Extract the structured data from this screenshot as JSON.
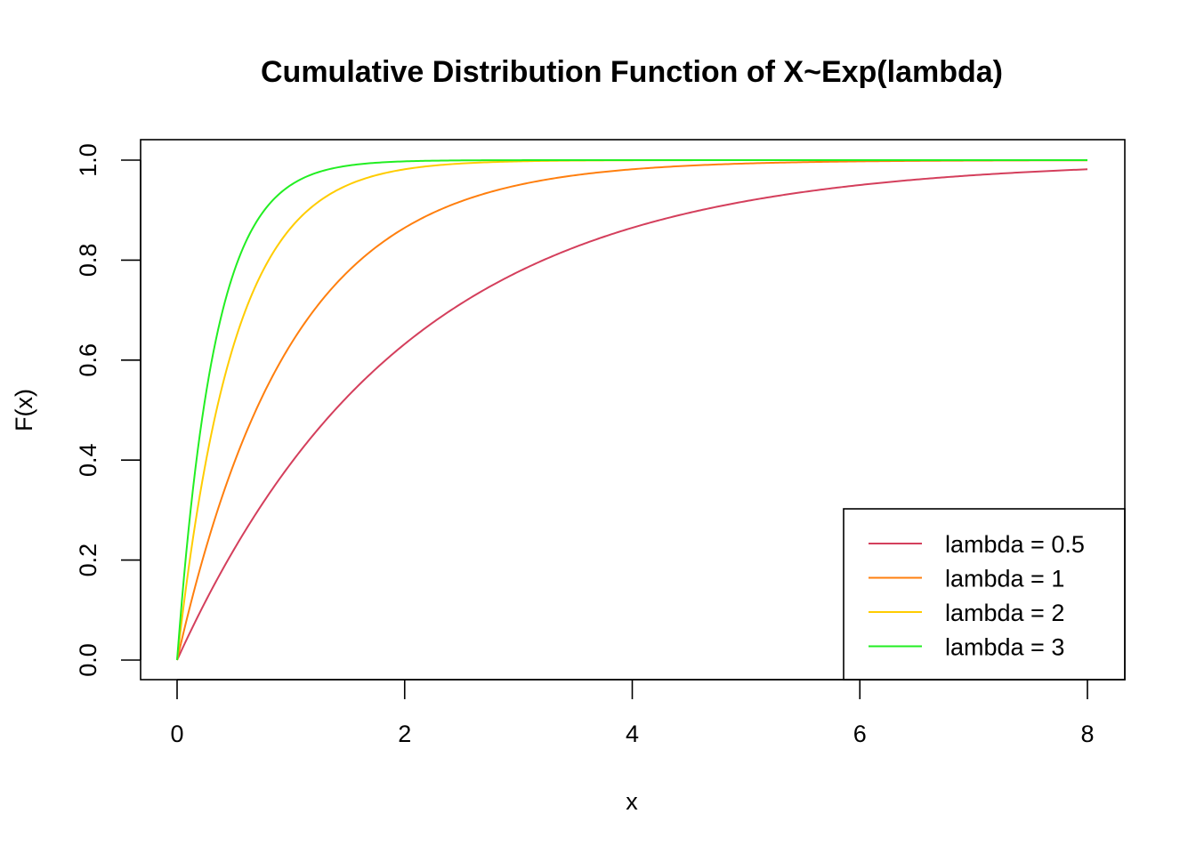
{
  "chart_data": {
    "type": "line",
    "title": "Cumulative Distribution Function of X~Exp(lambda)",
    "xlabel": "x",
    "ylabel": "F(x)",
    "xlim": [
      0,
      8
    ],
    "ylim": [
      0,
      1
    ],
    "x_ticks": [
      "0",
      "2",
      "4",
      "6",
      "8"
    ],
    "y_ticks": [
      "0.0",
      "0.2",
      "0.4",
      "0.6",
      "0.8",
      "1.0"
    ],
    "grid": false,
    "legend_position": "bottom-right",
    "x": [
      0,
      0.1,
      0.2,
      0.3,
      0.4,
      0.5,
      0.6,
      0.7,
      0.8,
      0.9,
      1.0,
      1.2,
      1.4,
      1.6,
      1.8,
      2.0,
      2.25,
      2.5,
      2.75,
      3.0,
      3.5,
      4.0,
      4.5,
      5.0,
      5.5,
      6.0,
      6.5,
      7.0,
      7.5,
      8.0
    ],
    "series": [
      {
        "name": "lambda = 0.5",
        "color": "#d43f5c",
        "values": [
          0,
          0.049,
          0.095,
          0.139,
          0.181,
          0.221,
          0.259,
          0.295,
          0.33,
          0.362,
          0.393,
          0.451,
          0.503,
          0.551,
          0.593,
          0.632,
          0.675,
          0.713,
          0.747,
          0.777,
          0.826,
          0.865,
          0.895,
          0.918,
          0.936,
          0.95,
          0.961,
          0.97,
          0.976,
          0.982
        ]
      },
      {
        "name": "lambda = 1",
        "color": "#ff7f0e",
        "values": [
          0,
          0.095,
          0.181,
          0.259,
          0.33,
          0.393,
          0.451,
          0.503,
          0.551,
          0.593,
          0.632,
          0.699,
          0.753,
          0.798,
          0.835,
          0.865,
          0.895,
          0.918,
          0.936,
          0.95,
          0.97,
          0.982,
          0.989,
          0.993,
          0.996,
          0.998,
          0.998,
          0.999,
          0.999,
          1.0
        ]
      },
      {
        "name": "lambda = 2",
        "color": "#ffcc00",
        "values": [
          0,
          0.181,
          0.33,
          0.451,
          0.551,
          0.632,
          0.699,
          0.753,
          0.798,
          0.835,
          0.865,
          0.909,
          0.939,
          0.959,
          0.973,
          0.982,
          0.989,
          0.993,
          0.996,
          0.998,
          0.999,
          1.0,
          1.0,
          1.0,
          1.0,
          1.0,
          1.0,
          1.0,
          1.0,
          1.0
        ]
      },
      {
        "name": "lambda = 3",
        "color": "#22ee22",
        "values": [
          0,
          0.259,
          0.451,
          0.593,
          0.699,
          0.777,
          0.835,
          0.878,
          0.909,
          0.933,
          0.95,
          0.973,
          0.985,
          0.992,
          0.995,
          0.998,
          0.999,
          0.999,
          1.0,
          1.0,
          1.0,
          1.0,
          1.0,
          1.0,
          1.0,
          1.0,
          1.0,
          1.0,
          1.0,
          1.0
        ]
      }
    ]
  }
}
